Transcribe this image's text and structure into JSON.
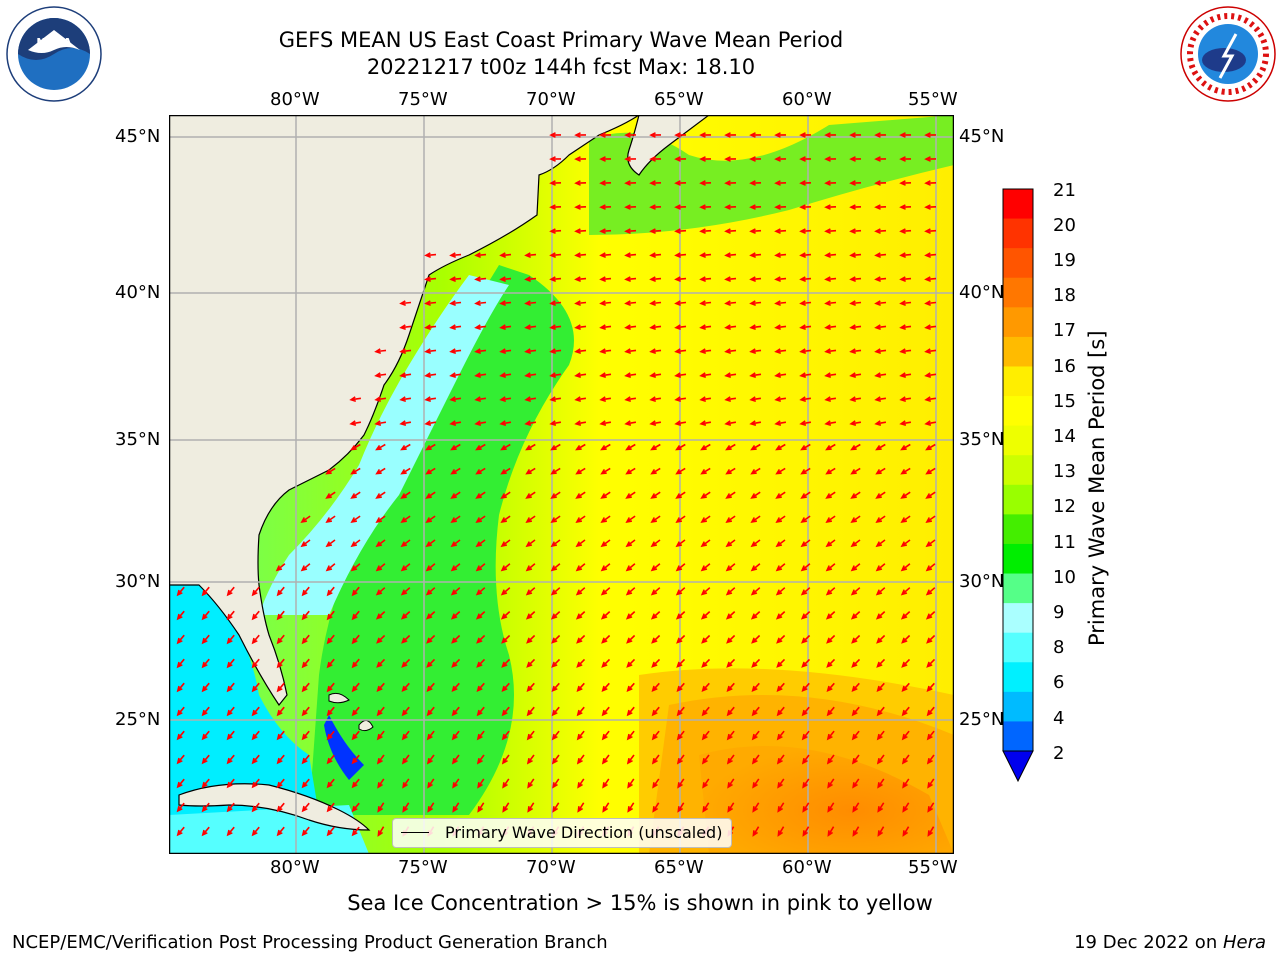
{
  "header": {
    "title_line1": "GEFS MEAN US East Coast Primary Wave Mean Period",
    "title_line2": "20221217 t00z 144h fcst   Max: 18.10"
  },
  "logos": {
    "left": "noao-logo",
    "right": "national-weather-service-logo"
  },
  "map": {
    "lon_labels": [
      "80°W",
      "75°W",
      "70°W",
      "65°W",
      "60°W",
      "55°W"
    ],
    "lat_labels": [
      "45°N",
      "40°N",
      "35°N",
      "30°N",
      "25°N"
    ],
    "legend_label": "Primary Wave Direction (unscaled)",
    "arrow_color": "#ff0000",
    "land_color": "#efede0"
  },
  "colorbar": {
    "label": "Primary Wave Mean Period [s]",
    "ticks": [
      "21",
      "20",
      "19",
      "18",
      "17",
      "16",
      "15",
      "14",
      "13",
      "12",
      "11",
      "10",
      "9",
      "8",
      "6",
      "4",
      "2"
    ],
    "colors": [
      "#ff0000",
      "#ff3300",
      "#ff5500",
      "#ff7700",
      "#ff9900",
      "#ffbb00",
      "#ffee00",
      "#ffff00",
      "#eeff00",
      "#ccff00",
      "#99ff00",
      "#44ee00",
      "#00ee00",
      "#55ff88",
      "#aaffff",
      "#55ffff",
      "#00f0ff",
      "#00bbff",
      "#0066ff"
    ],
    "extend_color": "#0000ee"
  },
  "notes": {
    "sea_ice": "Sea Ice Concentration > 15% is shown in pink to yellow"
  },
  "footer": {
    "left": "NCEP/EMC/Verification Post Processing Product Generation Branch",
    "date": "19 Dec 2022 on ",
    "machine": "Hera"
  }
}
